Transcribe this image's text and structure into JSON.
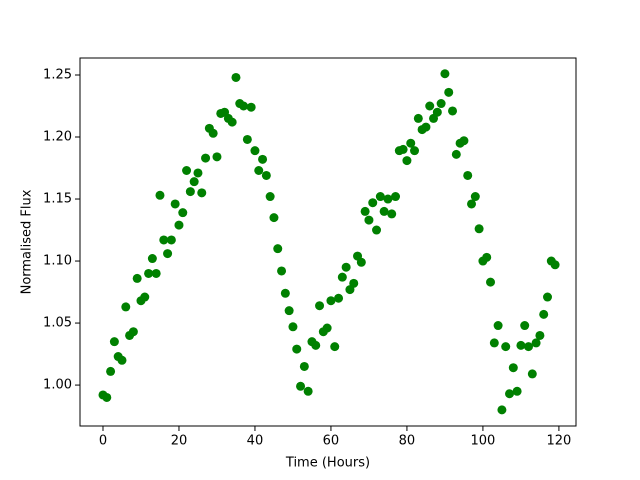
{
  "chart_data": {
    "type": "scatter",
    "xlabel": "Time (Hours)",
    "ylabel": "Normalised Flux",
    "color": "#008000",
    "x": [
      0,
      1,
      2,
      3,
      4,
      5,
      6,
      7,
      8,
      9,
      10,
      11,
      12,
      13,
      14,
      15,
      16,
      17,
      18,
      19,
      20,
      21,
      22,
      23,
      24,
      25,
      26,
      27,
      28,
      29,
      30,
      31,
      32,
      33,
      34,
      35,
      36,
      37,
      38,
      39,
      40,
      41,
      42,
      43,
      44,
      45,
      46,
      47,
      48,
      49,
      50,
      51,
      52,
      53,
      54,
      55,
      56,
      57,
      58,
      59,
      60,
      61,
      62,
      63,
      64,
      65,
      66,
      67,
      68,
      69,
      70,
      71,
      72,
      73,
      74,
      75,
      76,
      77,
      78,
      79,
      80,
      81,
      82,
      83,
      84,
      85,
      86,
      87,
      88,
      89,
      90,
      91,
      92,
      93,
      94,
      95,
      96,
      97,
      98,
      99,
      100,
      101,
      102,
      103,
      104,
      105,
      106,
      107,
      108,
      109,
      110,
      111,
      112,
      113,
      114,
      115,
      116,
      117,
      118,
      119
    ],
    "values": [
      0.992,
      0.99,
      1.011,
      1.035,
      1.023,
      1.02,
      1.063,
      1.04,
      1.043,
      1.086,
      1.068,
      1.071,
      1.09,
      1.102,
      1.09,
      1.153,
      1.117,
      1.106,
      1.117,
      1.146,
      1.129,
      1.139,
      1.173,
      1.156,
      1.164,
      1.171,
      1.155,
      1.183,
      1.207,
      1.203,
      1.184,
      1.219,
      1.22,
      1.215,
      1.212,
      1.248,
      1.227,
      1.225,
      1.198,
      1.224,
      1.189,
      1.173,
      1.182,
      1.169,
      1.152,
      1.135,
      1.11,
      1.092,
      1.074,
      1.06,
      1.047,
      1.029,
      0.999,
      1.015,
      0.995,
      1.035,
      1.032,
      1.064,
      1.043,
      1.046,
      1.068,
      1.031,
      1.07,
      1.087,
      1.095,
      1.077,
      1.082,
      1.104,
      1.099,
      1.14,
      1.133,
      1.147,
      1.125,
      1.152,
      1.14,
      1.15,
      1.138,
      1.152,
      1.189,
      1.19,
      1.181,
      1.195,
      1.189,
      1.215,
      1.206,
      1.208,
      1.225,
      1.215,
      1.22,
      1.227,
      1.251,
      1.236,
      1.221,
      1.186,
      1.195,
      1.197,
      1.169,
      1.146,
      1.152,
      1.126,
      1.1,
      1.103,
      1.083,
      1.034,
      1.048,
      0.98,
      1.031,
      0.993,
      1.014,
      0.995,
      1.032,
      1.048,
      1.031,
      1.009,
      1.034,
      1.04,
      1.057,
      1.071,
      1.1,
      1.097
    ],
    "xlim": [
      -6.05,
      124.5
    ],
    "ylim": [
      0.967,
      1.2637
    ],
    "xticks": [
      0,
      20,
      40,
      60,
      80,
      100,
      120
    ],
    "yticks": [
      {
        "value": 1,
        "label": "1.00"
      },
      1.05,
      {
        "value": 1.1,
        "label": "1.10"
      },
      1.15,
      {
        "value": 1.2,
        "label": "1.20"
      },
      1.25
    ],
    "grid": false
  }
}
